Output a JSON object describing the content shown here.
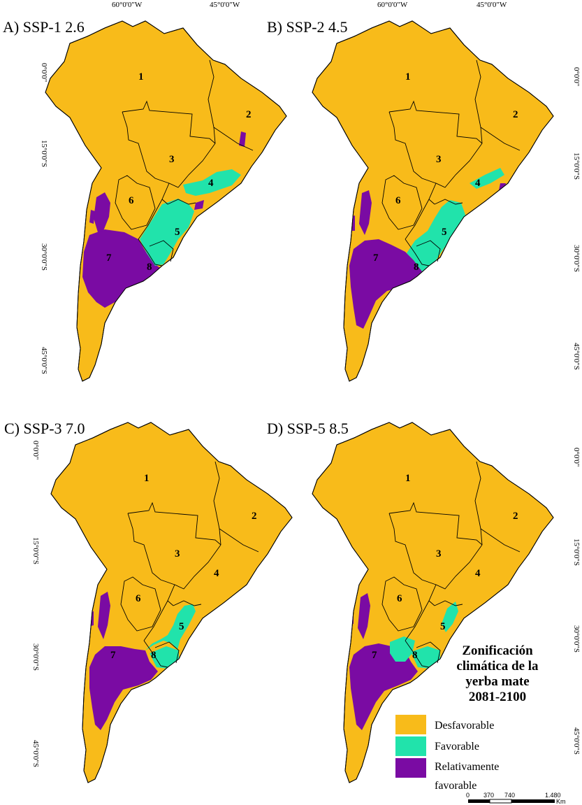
{
  "panels": [
    {
      "title": "A) SSP-1 2.6",
      "lon_labels": [
        "60°0'0\"W",
        "45°0'0\"W"
      ],
      "lat_labels": [
        "0°0'0\"",
        "15°0'0\"S",
        "30°0'0\"S",
        "45°0'0\"S"
      ]
    },
    {
      "title": "B) SSP-2 4.5",
      "lon_labels": [
        "60°0'0\"W",
        "45°0'0\"W"
      ],
      "lat_labels": [
        "0°0'0\"",
        "15°0'0\"S",
        "30°0'0\"S",
        "45°0'0\"S"
      ]
    },
    {
      "title": "C) SSP-3 7.0",
      "lon_labels": [],
      "lat_labels": [
        "0°0'0\"",
        "15°0'0\"S",
        "30°0'0\"S",
        "45°0'0\"S"
      ]
    },
    {
      "title": "D) SSP-5 8.5",
      "lon_labels": [],
      "lat_labels": [
        "0°0'0\"",
        "15°0'0\"S",
        "30°0'0\"S",
        "45°0'0\"S"
      ]
    }
  ],
  "region_numbers": [
    "1",
    "2",
    "3",
    "4",
    "5",
    "6",
    "7",
    "8"
  ],
  "legend": {
    "title_lines": [
      "Zonificación",
      "climática de la",
      "yerba mate",
      "2081-2100"
    ],
    "items": [
      {
        "label": "Desfavorable",
        "color": "#F8BB1A"
      },
      {
        "label": "Favorable",
        "color": "#21E3AB"
      },
      {
        "label": "Relativamente",
        "label2": "favorable",
        "color": "#7A0BA3"
      }
    ]
  },
  "scale_bar": {
    "ticks": [
      "0",
      "370",
      "740",
      "1.480"
    ],
    "unit": "Km"
  },
  "colors": {
    "unfavorable": "#F8BB1A",
    "favorable": "#21E3AB",
    "relatively_favorable": "#7A0BA3",
    "border": "#000000"
  }
}
